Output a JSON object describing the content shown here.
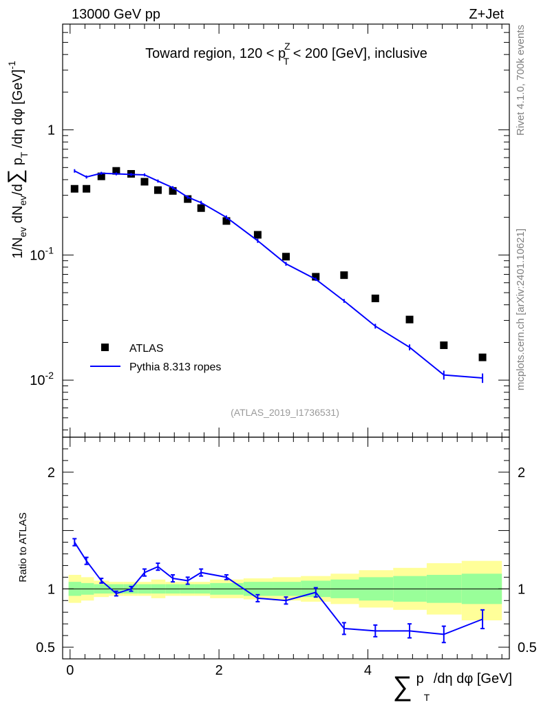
{
  "header": {
    "beam": "13000 GeV pp",
    "process": "Z+Jet"
  },
  "side": {
    "rivet": "Rivet 4.1.0,  700k events",
    "mcplots": "mcplots.cern.ch [arXiv:2401.10621]"
  },
  "chart_data": [
    {
      "type": "scatter",
      "panel": "main",
      "title": "Toward region, 120 < p_T^Z < 200 [GeV], inclusive",
      "title_parts": {
        "pre": "Toward region, 120 < p",
        "sup": "Z",
        "sub": "T",
        "post": " < 200 [GeV], inclusive"
      },
      "ylabel": "1/N_ev dN_ev/d∑ p_T /dη dφ [GeV]^-1",
      "ylabel_parts": {
        "a": "1/N",
        "ev1": "ev",
        "b": " dN",
        "ev2": "ev",
        "c": "/d",
        "sum": "∑",
        "d": " p",
        "t": "T",
        "e": " /dη dφ  [GeV]",
        "sup": "-1"
      },
      "yscale": "log",
      "ylim": [
        0.0035,
        7.0
      ],
      "xlim": [
        -0.1,
        5.9
      ],
      "ytick_labels": {
        "1e-2": "10",
        "1e-2_exp": "-2",
        "1e-1": "10",
        "1e-1_exp": "-1",
        "1": "1"
      },
      "watermark": "(ATLAS_2019_I1736531)",
      "legend": {
        "placement": "bottom-left",
        "data_label": "ATLAS",
        "mc_label": "Pythia 8.313 ropes"
      },
      "series": [
        {
          "name": "ATLAS",
          "style": "black squares",
          "x": [
            0.06,
            0.22,
            0.42,
            0.62,
            0.82,
            1.0,
            1.18,
            1.38,
            1.58,
            1.76,
            2.1,
            2.52,
            2.9,
            3.3,
            3.68,
            4.1,
            4.56,
            5.02,
            5.54
          ],
          "y": [
            0.338,
            0.338,
            0.425,
            0.47,
            0.445,
            0.385,
            0.33,
            0.325,
            0.28,
            0.237,
            0.187,
            0.145,
            0.097,
            0.067,
            0.069,
            0.045,
            0.0305,
            0.019,
            0.0152
          ]
        },
        {
          "name": "Pythia 8.313 ropes",
          "style": "blue line",
          "color": "#0000ff",
          "x": [
            0.06,
            0.22,
            0.42,
            0.62,
            0.82,
            1.0,
            1.18,
            1.38,
            1.58,
            1.76,
            2.1,
            2.52,
            2.9,
            3.3,
            3.68,
            4.1,
            4.56,
            5.02,
            5.54
          ],
          "y": [
            0.47,
            0.42,
            0.45,
            0.445,
            0.44,
            0.437,
            0.39,
            0.345,
            0.29,
            0.262,
            0.2,
            0.13,
            0.085,
            0.064,
            0.043,
            0.027,
            0.0183,
            0.011,
            0.0104
          ],
          "err": [
            0.015,
            0.012,
            0.012,
            0.012,
            0.012,
            0.012,
            0.011,
            0.01,
            0.009,
            0.009,
            0.007,
            0.005,
            0.003,
            0.002,
            0.0015,
            0.0012,
            0.001,
            0.0009,
            0.0009
          ]
        }
      ]
    },
    {
      "type": "line",
      "panel": "ratio",
      "ylabel": "Ratio to ATLAS",
      "ylim": [
        0.4,
        2.3
      ],
      "xlim": [
        -0.1,
        5.9
      ],
      "xlabel": "∑ p_T /dη dφ [GeV]",
      "xlabel_parts": {
        "sum": "∑",
        "p": " p",
        "t": "T",
        "rest": " /dη dφ [GeV]"
      },
      "xtick_labels": [
        "0",
        "2",
        "4"
      ],
      "xticks": [
        0,
        2,
        4
      ],
      "ytick_labels": [
        "0.5",
        "1",
        "2"
      ],
      "yticks": [
        0.5,
        1,
        2
      ],
      "bands": {
        "edges": [
          -0.02,
          0.15,
          0.32,
          0.52,
          0.72,
          0.91,
          1.09,
          1.28,
          1.48,
          1.67,
          1.88,
          2.33,
          2.72,
          3.1,
          3.5,
          3.88,
          4.34,
          4.79,
          5.26,
          5.8
        ],
        "stat_low": [
          0.94,
          0.95,
          0.96,
          0.96,
          0.96,
          0.96,
          0.96,
          0.96,
          0.96,
          0.96,
          0.95,
          0.94,
          0.94,
          0.93,
          0.92,
          0.9,
          0.89,
          0.88,
          0.87
        ],
        "stat_high": [
          1.06,
          1.05,
          1.04,
          1.04,
          1.04,
          1.04,
          1.04,
          1.04,
          1.04,
          1.04,
          1.05,
          1.06,
          1.06,
          1.07,
          1.08,
          1.1,
          1.11,
          1.12,
          1.13
        ],
        "total_low": [
          0.88,
          0.9,
          0.93,
          0.94,
          0.94,
          0.94,
          0.92,
          0.94,
          0.94,
          0.94,
          0.92,
          0.91,
          0.9,
          0.89,
          0.87,
          0.84,
          0.82,
          0.78,
          0.73
        ],
        "total_high": [
          1.12,
          1.1,
          1.07,
          1.06,
          1.06,
          1.06,
          1.08,
          1.06,
          1.06,
          1.06,
          1.08,
          1.09,
          1.1,
          1.11,
          1.13,
          1.16,
          1.18,
          1.22,
          1.24
        ],
        "stat_color": "#99ff99",
        "total_color": "#ffff99"
      },
      "series": [
        {
          "name": "Pythia 8.313 ropes / ATLAS",
          "color": "#0000ff",
          "x": [
            0.06,
            0.22,
            0.42,
            0.62,
            0.82,
            1.0,
            1.18,
            1.38,
            1.58,
            1.76,
            2.1,
            2.52,
            2.9,
            3.3,
            3.68,
            4.1,
            4.56,
            5.02,
            5.54
          ],
          "y": [
            1.4,
            1.24,
            1.07,
            0.96,
            1.0,
            1.14,
            1.19,
            1.09,
            1.07,
            1.14,
            1.1,
            0.92,
            0.9,
            0.97,
            0.66,
            0.64,
            0.64,
            0.61,
            0.74
          ],
          "err": [
            0.03,
            0.03,
            0.02,
            0.02,
            0.02,
            0.03,
            0.03,
            0.03,
            0.03,
            0.03,
            0.02,
            0.03,
            0.03,
            0.04,
            0.05,
            0.05,
            0.06,
            0.07,
            0.08
          ]
        }
      ]
    }
  ]
}
